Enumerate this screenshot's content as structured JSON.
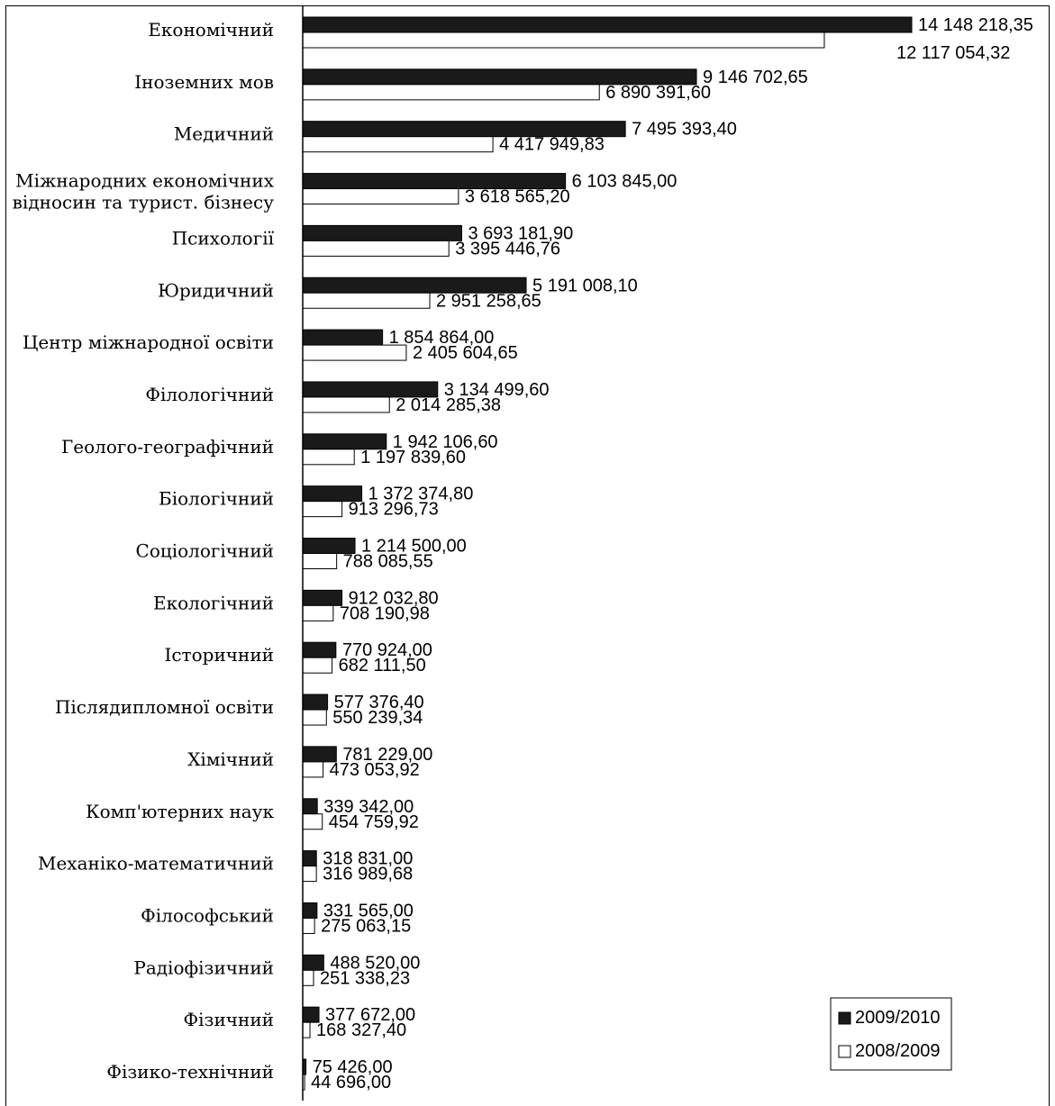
{
  "chart_data": {
    "type": "bar",
    "orientation": "horizontal",
    "categories": [
      "Економічний",
      "Іноземних мов",
      "Медичний",
      "Міжнародних економічних відносин та турист. бізнесу",
      "Психології",
      "Юридичний",
      "Центр міжнародної освіти",
      "Філологічний",
      "Геолого-географічний",
      "Біологічний",
      "Соціологічний",
      "Екологічний",
      "Історичний",
      "Післядипломної освіти",
      "Хімічний",
      "Комп'ютерних наук",
      "Механіко-математичний",
      "Філософський",
      "Радіофізичний",
      "Фізичний",
      "Фізико-технічний"
    ],
    "category_lines": [
      [
        "Економічний"
      ],
      [
        "Іноземних мов"
      ],
      [
        "Медичний"
      ],
      [
        "Міжнародних економічних",
        "відносин та турист. бізнесу"
      ],
      [
        "Психології"
      ],
      [
        "Юридичний"
      ],
      [
        "Центр міжнародної освіти"
      ],
      [
        "Філологічний"
      ],
      [
        "Геолого-географічний"
      ],
      [
        "Біологічний"
      ],
      [
        "Соціологічний"
      ],
      [
        "Екологічний"
      ],
      [
        "Історичний"
      ],
      [
        "Післядипломної освіти"
      ],
      [
        "Хімічний"
      ],
      [
        "Комп'ютерних наук"
      ],
      [
        "Механіко-математичний"
      ],
      [
        "Філософський"
      ],
      [
        "Радіофізичний"
      ],
      [
        "Фізичний"
      ],
      [
        "Фізико-технічний"
      ]
    ],
    "series": [
      {
        "name": "2009/2010",
        "color": "#1a1a1a",
        "values": [
          14148218.35,
          9146702.65,
          7495393.4,
          6103845.0,
          3693181.9,
          5191008.1,
          1854864.0,
          3134499.6,
          1942106.6,
          1372374.8,
          1214500.0,
          912032.8,
          770924.0,
          577376.4,
          781229.0,
          339342.0,
          318831.0,
          331565.0,
          488520.0,
          377672.0,
          75426.0
        ],
        "labels": [
          "14 148 218,35",
          "9 146 702,65",
          "7 495 393,40",
          "6 103 845,00",
          "3 693 181,90",
          "5 191 008,10",
          "1 854 864,00",
          "3 134 499,60",
          "1 942 106,60",
          "1 372 374,80",
          "1 214 500,00",
          "912 032,80",
          "770 924,00",
          "577 376,40",
          "781 229,00",
          "339 342,00",
          "318 831,00",
          "331 565,00",
          "488 520,00",
          "377 672,00",
          "75 426,00"
        ]
      },
      {
        "name": "2008/2009",
        "color": "#ffffff",
        "values": [
          12117054.32,
          6890391.6,
          4417949.83,
          3618565.2,
          3395446.76,
          2951258.65,
          2405604.65,
          2014285.38,
          1197839.6,
          913296.73,
          788085.55,
          708190.98,
          682111.5,
          550239.34,
          473053.92,
          454759.92,
          316989.68,
          275063.15,
          251338.23,
          168327.4,
          44696.0
        ],
        "labels": [
          "12 117 054,32",
          "6 890 391,60",
          "4 417 949,83",
          "3 618 565,20",
          "3 395 446,76",
          "2 951 258,65",
          "2 405 604,65",
          "2 014 285,38",
          "1 197 839,60",
          "913 296,73",
          "788 085,55",
          "708 190,98",
          "682 111,50",
          "550 239,34",
          "473 053,92",
          "454 759,92",
          "316 989,68",
          "275 063,15",
          "251 338,23",
          "168 327,40",
          "44 696,00"
        ]
      }
    ],
    "xlim": [
      0,
      14148218.35
    ],
    "grid": false,
    "legend_position": "bottom-right"
  }
}
